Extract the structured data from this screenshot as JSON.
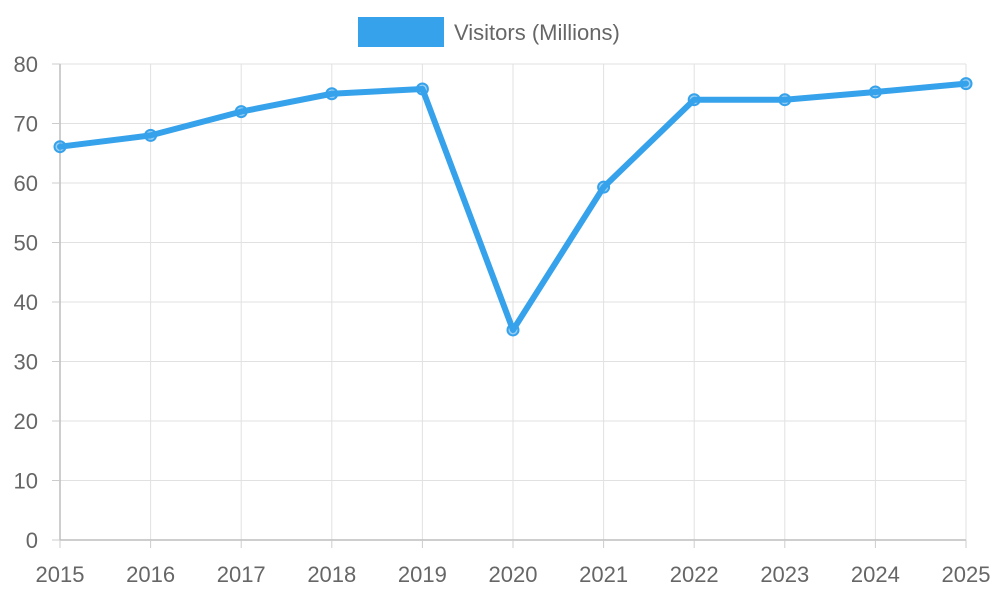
{
  "chart_data": {
    "type": "line",
    "title": "",
    "xlabel": "",
    "ylabel": "",
    "categories": [
      "2015",
      "2016",
      "2017",
      "2018",
      "2019",
      "2020",
      "2021",
      "2022",
      "2023",
      "2024",
      "2025"
    ],
    "series": [
      {
        "name": "Visitors (Millions)",
        "values": [
          66.1,
          68.0,
          72.0,
          75.0,
          75.8,
          35.3,
          59.3,
          74.0,
          74.0,
          75.3,
          76.7
        ],
        "color": "#36A2EB"
      }
    ],
    "ylim": [
      0,
      80
    ],
    "yticks": [
      "0",
      "10",
      "20",
      "30",
      "40",
      "50",
      "60",
      "70",
      "80"
    ],
    "grid": true,
    "legend_position": "top-center"
  }
}
